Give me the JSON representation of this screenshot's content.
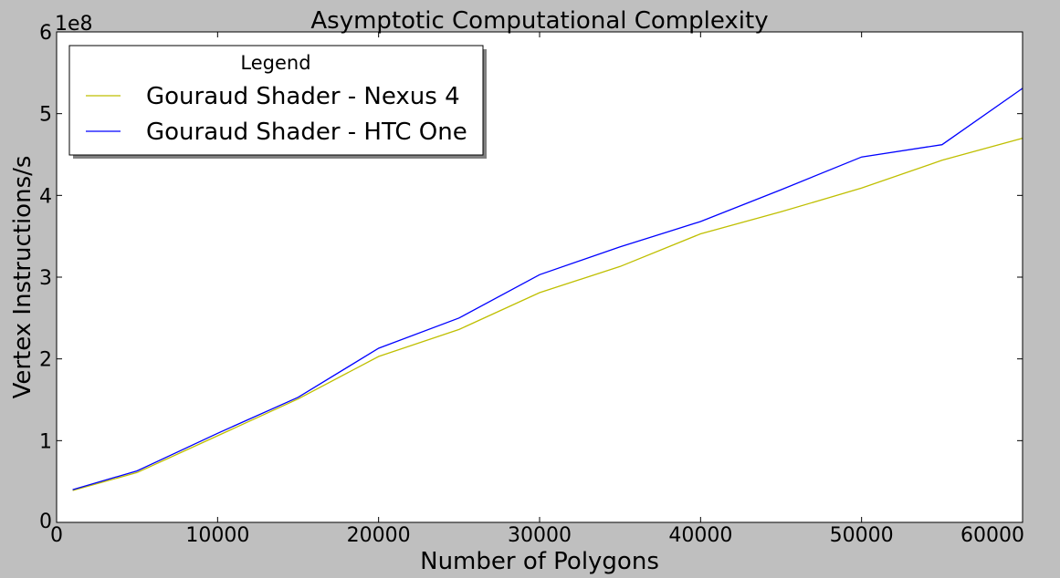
{
  "chart_data": {
    "type": "line",
    "title": "Asymptotic Computational Complexity",
    "xlabel": "Number of Polygons",
    "ylabel": "Vertex Instructions/s",
    "y_offset_label": "1e8",
    "xlim": [
      0,
      60000
    ],
    "ylim": [
      0,
      6
    ],
    "x_ticks": [
      0,
      10000,
      20000,
      30000,
      40000,
      50000,
      60000
    ],
    "y_ticks": [
      0,
      1,
      2,
      3,
      4,
      5,
      6
    ],
    "grid": false,
    "legend": {
      "title": "Legend",
      "placement": "top-left"
    },
    "x": [
      1000,
      5000,
      10000,
      15000,
      20000,
      25000,
      30000,
      35000,
      40000,
      45000,
      50000,
      55000,
      60000
    ],
    "series": [
      {
        "name": "Gouraud Shader - Nexus 4",
        "color": "#bfbf00",
        "values": [
          0.39,
          0.61,
          1.06,
          1.51,
          2.03,
          2.36,
          2.81,
          3.13,
          3.53,
          3.8,
          4.09,
          4.43,
          4.7
        ]
      },
      {
        "name": "Gouraud Shader - HTC One",
        "color": "#0000ff",
        "values": [
          0.4,
          0.63,
          1.09,
          1.53,
          2.13,
          2.5,
          3.03,
          3.37,
          3.68,
          4.07,
          4.47,
          4.62,
          5.31
        ]
      }
    ]
  }
}
